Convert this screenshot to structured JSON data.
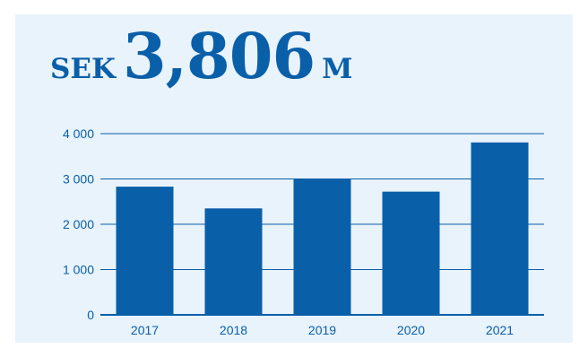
{
  "headline": {
    "prefix": "SEK",
    "value": "3,806",
    "suffix": "M"
  },
  "colors": {
    "panel_background": "#e8f3fb",
    "bar": "#0a5fa9",
    "grid": "#0a5fa9",
    "text": "#0a5fa9"
  },
  "chart_data": {
    "type": "bar",
    "title": "",
    "xlabel": "",
    "ylabel": "",
    "categories": [
      "2017",
      "2018",
      "2019",
      "2020",
      "2021"
    ],
    "values": [
      2830,
      2350,
      2990,
      2720,
      3806
    ],
    "ylim": [
      0,
      4000
    ],
    "yticks": [
      0,
      1000,
      2000,
      3000,
      4000
    ],
    "ytick_labels": [
      "0",
      "1 000",
      "2 000",
      "3 000",
      "4 000"
    ],
    "grid": true
  }
}
